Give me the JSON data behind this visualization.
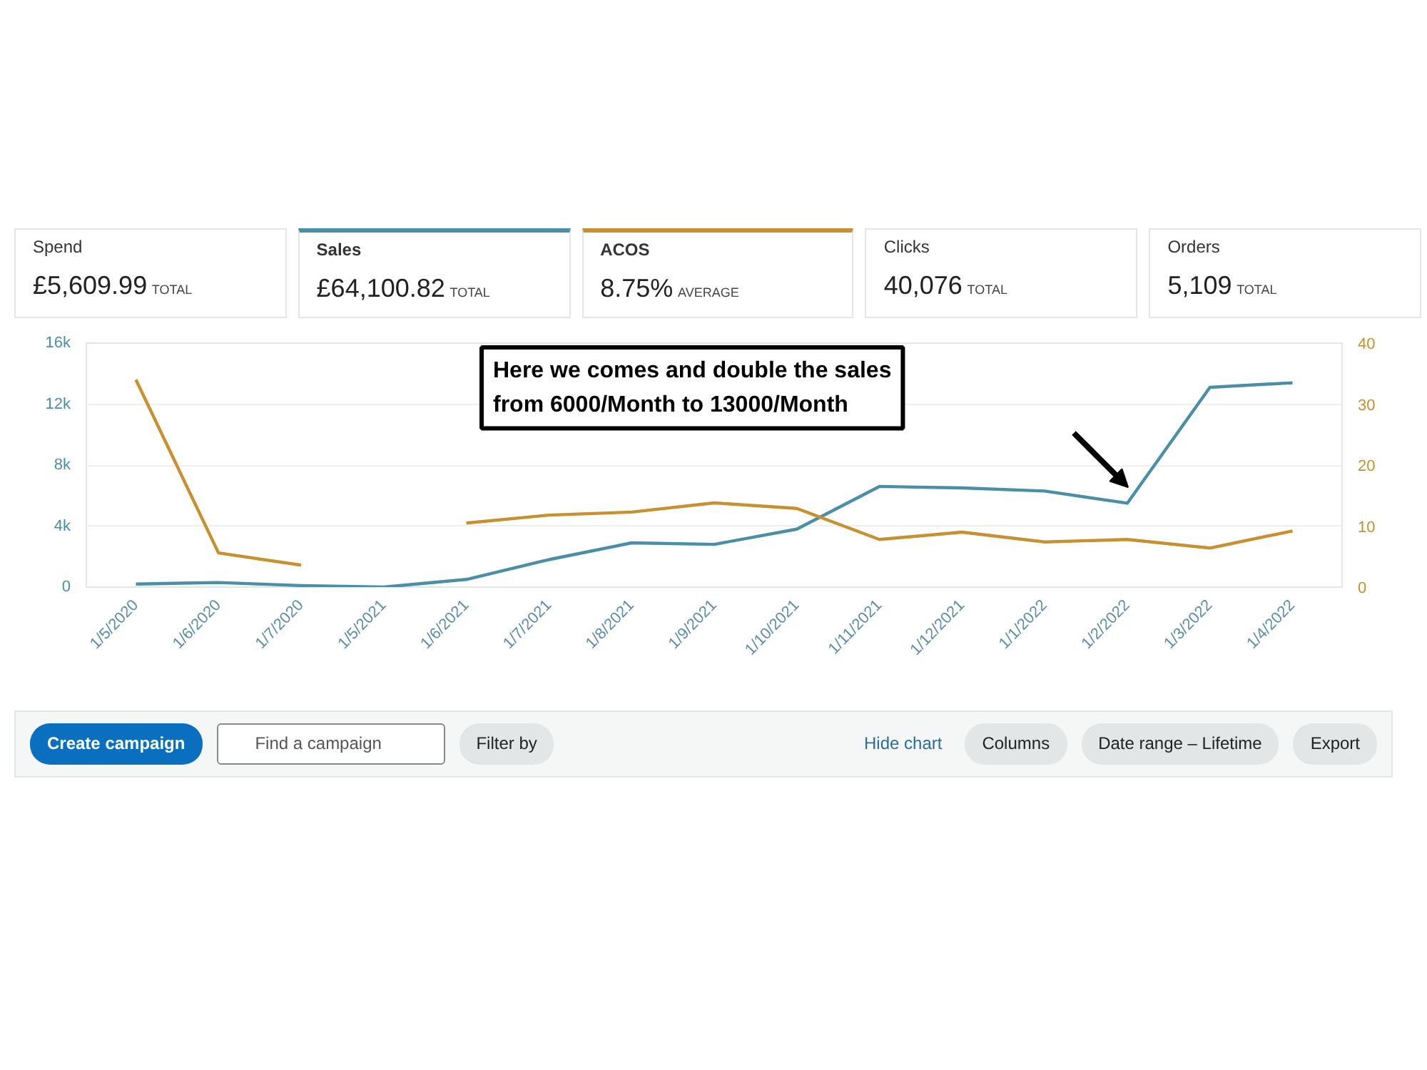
{
  "chart_data": [
    {
      "type": "other",
      "annotations": [
        "Spend",
        "£5,609.99",
        "TOTAL",
        "Sales",
        "£64,100.82",
        "TOTAL",
        "ACOS",
        "8.75%",
        "AVERAGE",
        "Clicks",
        "40,076",
        "TOTAL",
        "Orders",
        "5,109",
        "TOTAL"
      ],
      "colors": [
        null,
        "#4a8fa8",
        "#c8902e",
        null,
        null
      ]
    },
    {
      "type": "line",
      "categories": [
        "1/5/2020",
        "1/6/2020",
        "1/7/2020",
        "1/5/2021",
        "1/6/2021",
        "1/7/2021",
        "1/8/2021",
        "1/9/2021",
        "1/10/2021",
        "1/11/2021",
        "1/12/2021",
        "1/1/2022",
        "1/2/2022",
        "1/3/2022",
        "1/4/2022"
      ],
      "series": [
        {
          "color": "#4a8fa8",
          "values": [
            200,
            300,
            100,
            0,
            500,
            1800,
            2900,
            2800,
            3800,
            6600,
            6500,
            6300,
            5500,
            13100,
            13400
          ]
        },
        {
          "color": "#c8902e",
          "axis": "y2",
          "values": [
            34,
            5.6,
            3.6,
            null,
            10.5,
            11.8,
            12.3,
            13.8,
            12.9,
            7.8,
            9.0,
            7.4,
            7.8,
            6.4,
            9.2
          ]
        }
      ],
      "ylim": [
        0,
        16000
      ],
      "yticks": [
        0,
        {
          "value": 4000,
          "label": "4k"
        },
        {
          "value": 8000,
          "label": "8k"
        },
        {
          "value": 12000,
          "label": "12k"
        },
        {
          "value": 16000,
          "label": "16k"
        }
      ],
      "y2lim": [
        0,
        40
      ],
      "y2ticks": [
        0,
        10,
        20,
        30,
        40
      ],
      "grid": "y",
      "annotations": [
        "Here we comes and double the sales\nfrom 6000/Month to 13000/Month"
      ]
    },
    {
      "type": "other",
      "annotations": [
        "Create campaign",
        "Find a campaign",
        "Filter by",
        "Hide chart",
        "Columns",
        "Date range – Lifetime",
        "Export"
      ]
    }
  ]
}
